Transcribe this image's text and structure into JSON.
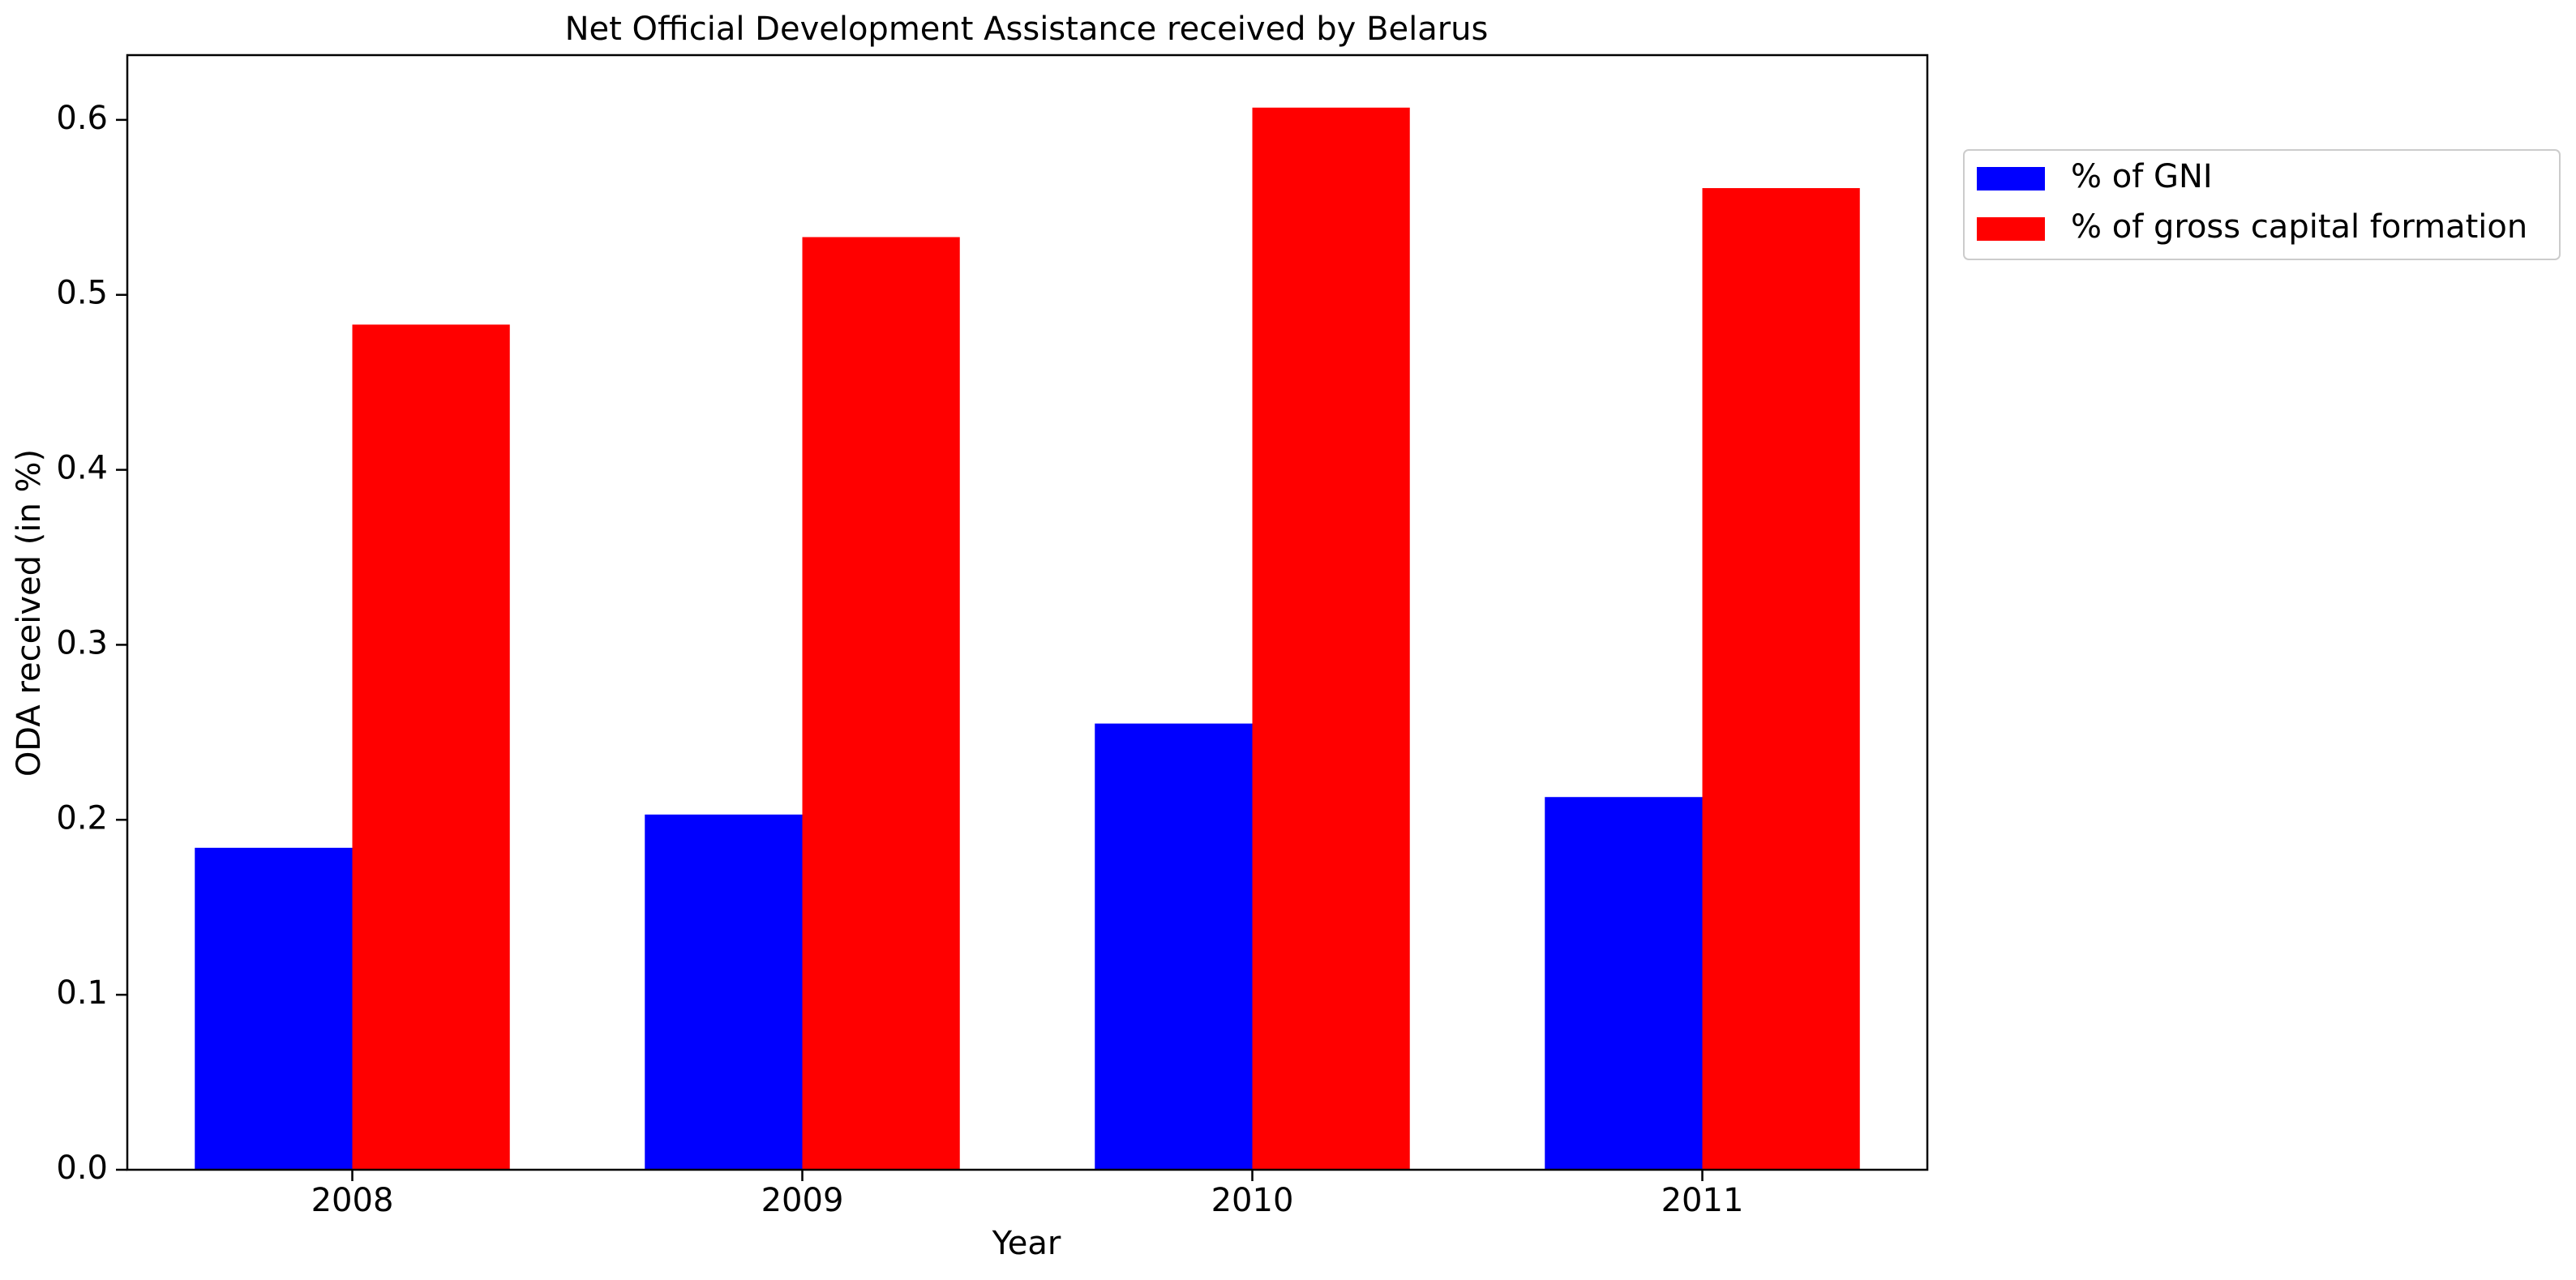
{
  "chart_data": {
    "type": "bar",
    "title": "Net Official Development Assistance received by Belarus",
    "xlabel": "Year",
    "ylabel": "ODA received (in %)",
    "categories": [
      "2008",
      "2009",
      "2010",
      "2011"
    ],
    "series": [
      {
        "name": "% of GNI",
        "color": "#0000ff",
        "values": [
          0.184,
          0.203,
          0.255,
          0.213
        ]
      },
      {
        "name": "% of gross capital formation",
        "color": "#ff0000",
        "values": [
          0.483,
          0.533,
          0.607,
          0.561
        ]
      }
    ],
    "ylim": [
      0,
      0.637
    ],
    "yticks": [
      0.0,
      0.1,
      0.2,
      0.3,
      0.4,
      0.5,
      0.6
    ],
    "ytick_labels": [
      "0.0",
      "0.1",
      "0.2",
      "0.3",
      "0.4",
      "0.5",
      "0.6"
    ],
    "grid": false,
    "legend_position": "outside-top-right"
  }
}
